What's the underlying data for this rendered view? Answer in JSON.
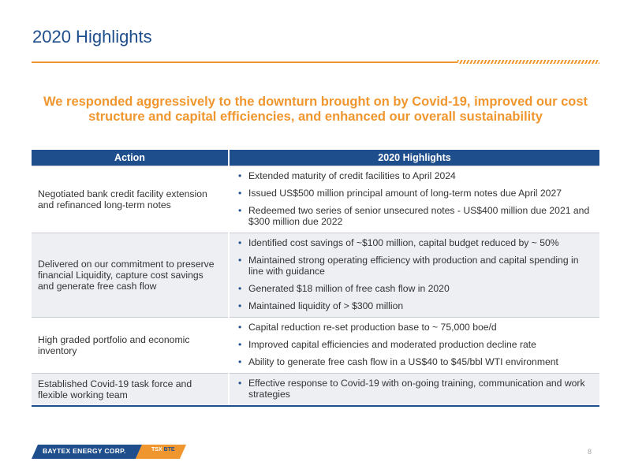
{
  "header": {
    "title": "2020 Highlights"
  },
  "subtitle": "We responded aggressively to the downturn brought on by Covid-19, improved our cost structure and capital efficiencies, and enhanced our overall sustainability",
  "table": {
    "headers": [
      "Action",
      "2020 Highlights"
    ],
    "rows": [
      {
        "action": "Negotiated bank credit facility extension and refinanced long-term notes",
        "highlights": [
          "Extended maturity of credit facilities to April 2024",
          "Issued US$500 million principal amount of long-term notes due April 2027",
          "Redeemed  two series of senior unsecured notes - US$400 million due 2021 and $300 million due 2022"
        ]
      },
      {
        "action": "Delivered on our commitment to preserve financial Liquidity, capture cost savings and generate free cash flow",
        "highlights": [
          "Identified cost savings of ~$100 million, capital budget reduced by ~ 50%",
          "Maintained strong operating efficiency with production and capital spending in line with guidance",
          "Generated $18 million of free cash flow in 2020",
          "Maintained liquidity of > $300 million"
        ]
      },
      {
        "action": "High graded portfolio and economic inventory",
        "highlights": [
          "Capital reduction re-set production base to ~ 75,000 boe/d",
          "Improved capital efficiencies and moderated production decline rate",
          "Ability to generate free cash flow in a US$40 to $45/bbl WTI environment"
        ]
      },
      {
        "action": "Established Covid-19 task force and flexible working team",
        "highlights": [
          "Effective response to Covid-19 with on-going training, communication and work strategies"
        ]
      }
    ]
  },
  "footer": {
    "logo_text": "BAYTEX ENERGY CORP.",
    "ticker_exchange": "TSX",
    "ticker_separator": "|",
    "ticker_symbol": "BTE",
    "page_number": "8"
  },
  "colors": {
    "brand_blue": "#1f4e8c",
    "accent_orange": "#f0962e",
    "row_alt": "#eeeff3"
  }
}
